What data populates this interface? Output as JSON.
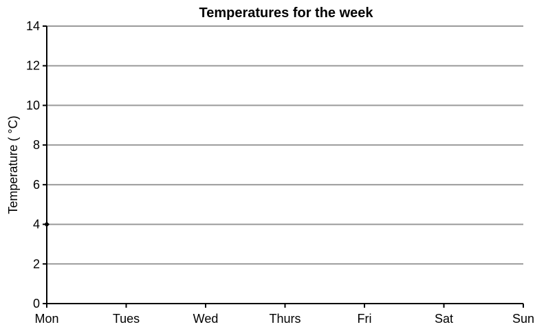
{
  "chart_data": {
    "type": "line",
    "title": "Temperatures for the week",
    "xlabel": "",
    "ylabel": "Temperature ( °C)",
    "categories": [
      "Mon",
      "Tues",
      "Wed",
      "Thurs",
      "Fri",
      "Sat",
      "Sun"
    ],
    "yticks": [
      0,
      2,
      4,
      6,
      8,
      10,
      12,
      14
    ],
    "ylim": [
      0,
      14
    ],
    "grid": true,
    "legend": "none",
    "series": [
      {
        "values": [
          4,
          null,
          null,
          null,
          null,
          null,
          null
        ]
      }
    ]
  }
}
